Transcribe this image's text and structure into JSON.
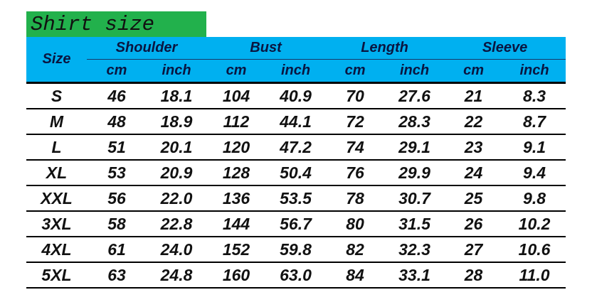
{
  "title": "Shirt size",
  "colors": {
    "title_bg": "#22b14c",
    "header_bg": "#00b0f0"
  },
  "header": {
    "size": "Size",
    "groups": [
      "Shoulder",
      "Bust",
      "Length",
      "Sleeve"
    ],
    "units": [
      "cm",
      "inch",
      "cm",
      "inch",
      "cm",
      "inch",
      "cm",
      "inch"
    ]
  },
  "rows": [
    [
      "S",
      "46",
      "18.1",
      "104",
      "40.9",
      "70",
      "27.6",
      "21",
      "8.3"
    ],
    [
      "M",
      "48",
      "18.9",
      "112",
      "44.1",
      "72",
      "28.3",
      "22",
      "8.7"
    ],
    [
      "L",
      "51",
      "20.1",
      "120",
      "47.2",
      "74",
      "29.1",
      "23",
      "9.1"
    ],
    [
      "XL",
      "53",
      "20.9",
      "128",
      "50.4",
      "76",
      "29.9",
      "24",
      "9.4"
    ],
    [
      "XXL",
      "56",
      "22.0",
      "136",
      "53.5",
      "78",
      "30.7",
      "25",
      "9.8"
    ],
    [
      "3XL",
      "58",
      "22.8",
      "144",
      "56.7",
      "80",
      "31.5",
      "26",
      "10.2"
    ],
    [
      "4XL",
      "61",
      "24.0",
      "152",
      "59.8",
      "82",
      "32.3",
      "27",
      "10.6"
    ],
    [
      "5XL",
      "63",
      "24.8",
      "160",
      "63.0",
      "84",
      "33.1",
      "28",
      "11.0"
    ]
  ]
}
